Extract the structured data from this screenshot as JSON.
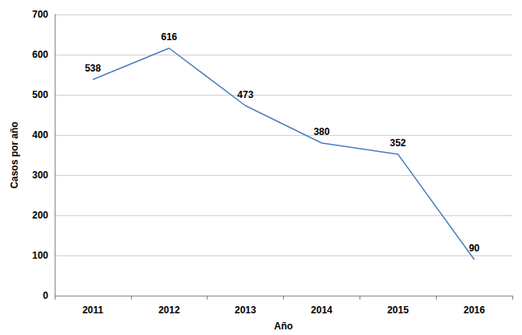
{
  "chart_data": {
    "type": "line",
    "x_label": "Año",
    "y_label": "Casos por año",
    "categories": [
      "2011",
      "2012",
      "2013",
      "2014",
      "2015",
      "2016"
    ],
    "values": [
      538,
      616,
      473,
      380,
      352,
      90
    ],
    "color": "#4a7ebb",
    "ylim": [
      0,
      700
    ],
    "yticks": [
      0,
      100,
      200,
      300,
      400,
      500,
      600,
      700
    ],
    "grid": true,
    "data_labels": true
  }
}
